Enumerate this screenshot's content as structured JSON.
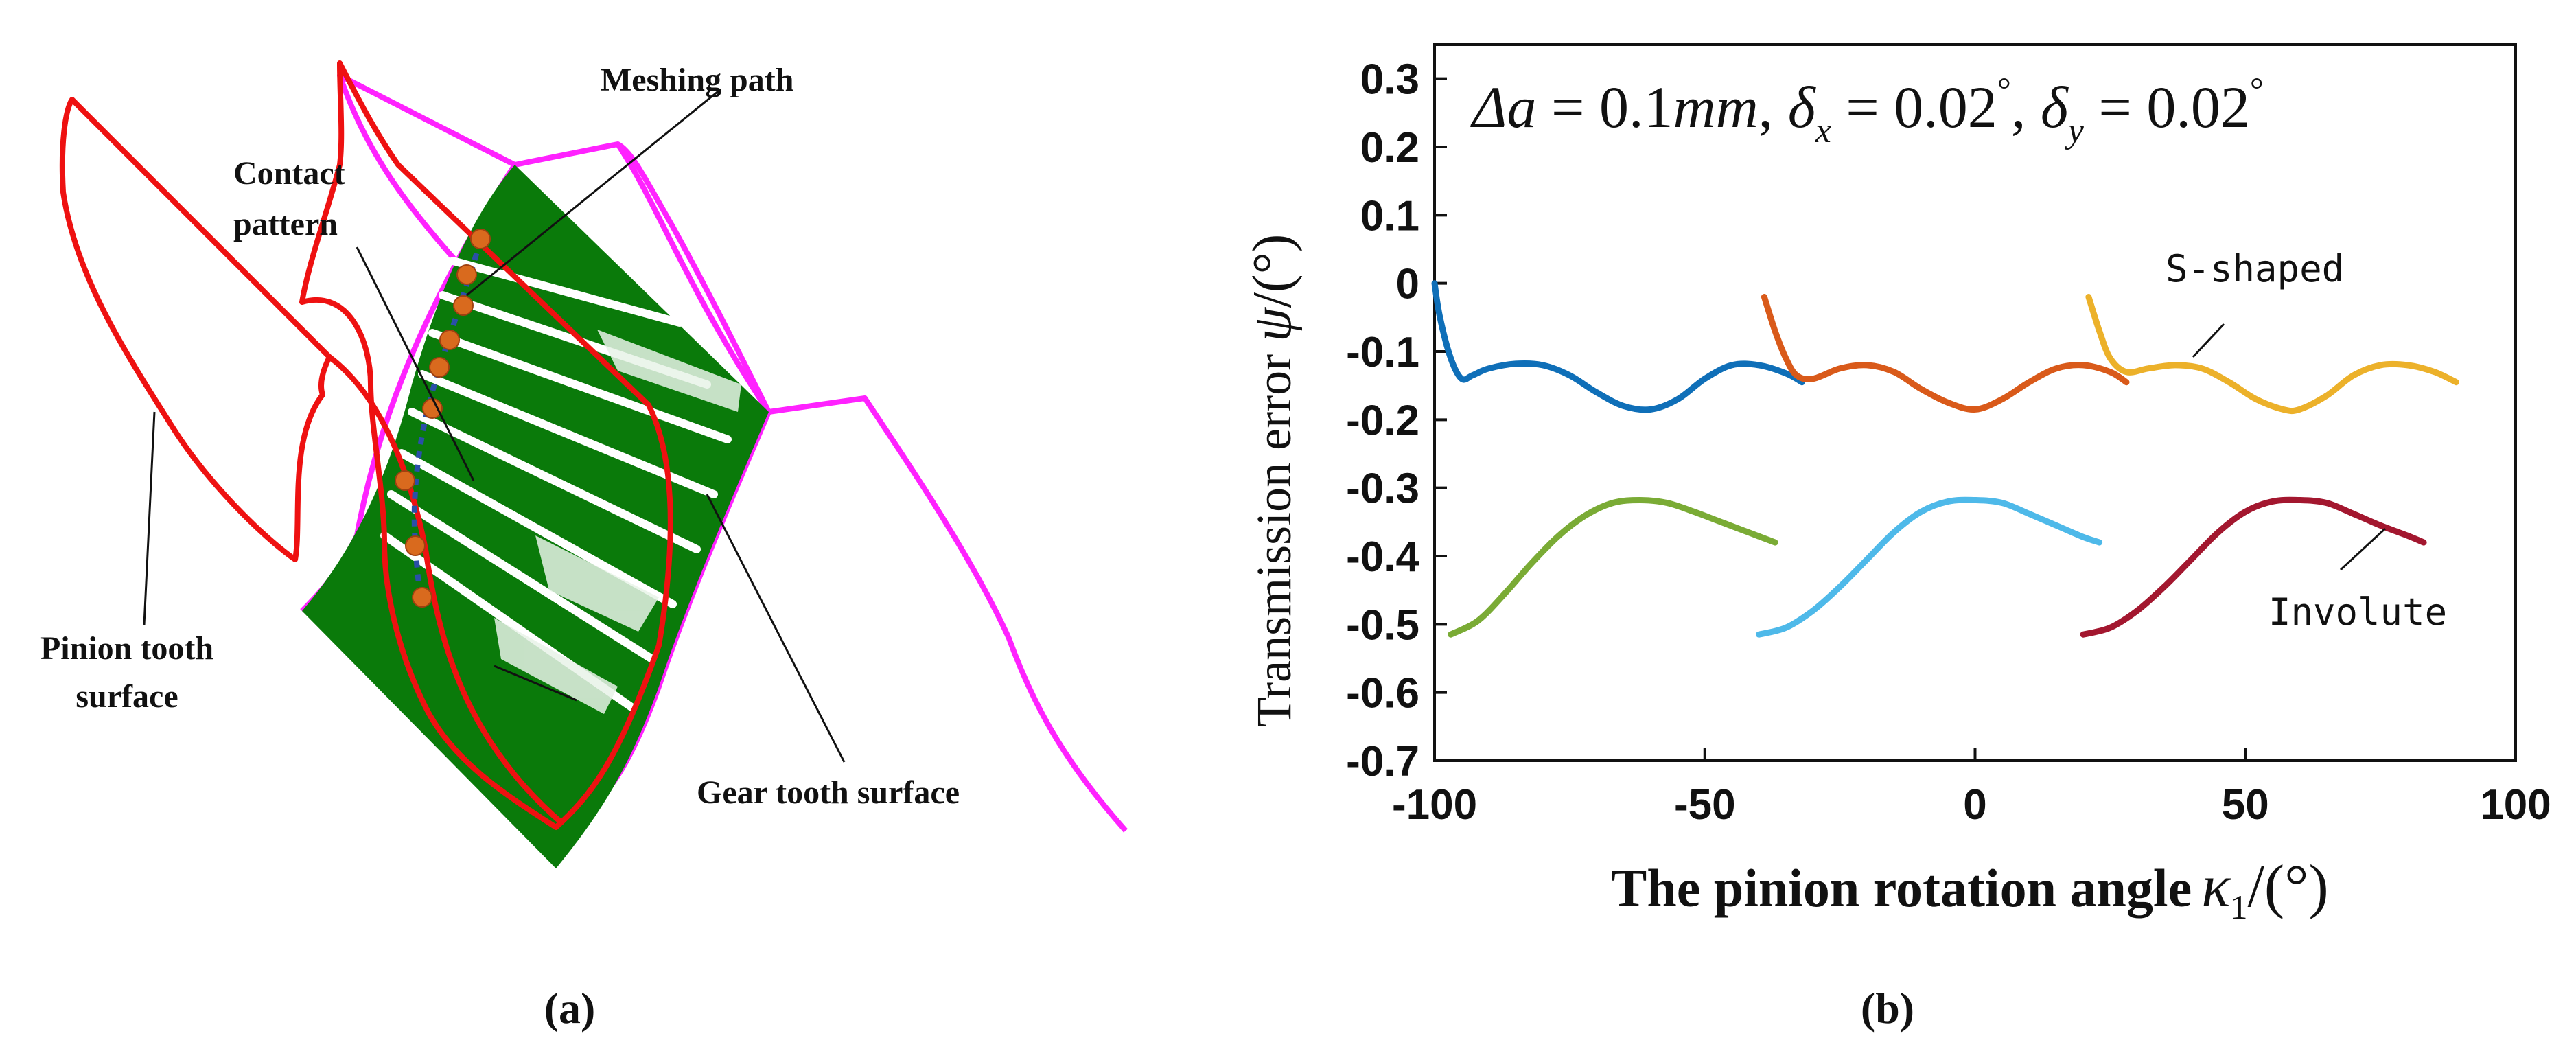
{
  "colors": {
    "pinion_outline": "#ee1111",
    "gear_outline": "#ff22ff",
    "contact_fill": "#0a7a0a",
    "meshing_star": "#d96a1e",
    "meshing_path": "#2a4fa8",
    "s_shaped_1": "#0f6fb8",
    "s_shaped_2": "#d95a1a",
    "s_shaped_3": "#ecb12a",
    "involute_1": "#7aab35",
    "involute_2": "#4eb9e9",
    "involute_3": "#a3172f"
  },
  "panel_a": {
    "caption": "(a)",
    "labels": {
      "meshing_path": "Meshing path",
      "contact_line1": "Contact",
      "contact_line2": "pattern",
      "pinion_line1": "Pinion tooth",
      "pinion_line2": "surface",
      "gear": "Gear tooth surface"
    }
  },
  "panel_b": {
    "caption": "(b)",
    "annotation": {
      "delta_a": "Δa",
      "eq1": " = 0.1",
      "unit": "mm",
      "sep": ", ",
      "delta": "δ",
      "sub_x": "x",
      "sub_y": "y",
      "eq2": " = 0.02",
      "deg": "°"
    },
    "label_s_shaped": "S-shaped",
    "label_involute": "Involute",
    "ylabel_text": "Transmission error ",
    "ylabel_symbol": "ψ",
    "ylabel_unit": "/(°)",
    "xlabel_text": "The pinion rotation angle",
    "xlabel_symbol": "κ",
    "xlabel_sub": "1",
    "xlabel_unit": "/(°)"
  },
  "chart_data": {
    "type": "line",
    "title": "Δa = 0.1mm, δx = 0.02°, δy = 0.02°",
    "xlabel": "The pinion rotation angle κ1 /(°)",
    "ylabel": "Transmission error ψ /(°)",
    "xlim": [
      -100,
      100
    ],
    "ylim": [
      -0.7,
      0.35
    ],
    "xticks": [
      -100,
      -50,
      0,
      50,
      100
    ],
    "xtick_labels": [
      "-100",
      "-50",
      "0",
      "50",
      "100"
    ],
    "yticks": [
      0.3,
      0.2,
      0.1,
      0,
      -0.1,
      -0.2,
      -0.3,
      -0.4,
      -0.5,
      -0.6,
      -0.7
    ],
    "ytick_labels": [
      "0.3",
      "0.2",
      "0.1",
      "0",
      "-0.1",
      "-0.2",
      "-0.3",
      "-0.4",
      "-0.5",
      "-0.6",
      "-0.7"
    ],
    "grid": false,
    "series": [
      {
        "name": "S-shaped (tooth 1)",
        "group": "S-shaped",
        "color": "#0f6fb8",
        "x": [
          -100,
          -99,
          -97,
          -95,
          -93,
          -90,
          -85,
          -80,
          -75,
          -70,
          -65,
          -60,
          -55,
          -50,
          -45,
          -40,
          -35,
          -32
        ],
        "y": [
          0.0,
          -0.05,
          -0.11,
          -0.14,
          -0.135,
          -0.125,
          -0.118,
          -0.12,
          -0.135,
          -0.16,
          -0.18,
          -0.185,
          -0.17,
          -0.14,
          -0.12,
          -0.12,
          -0.132,
          -0.145
        ]
      },
      {
        "name": "S-shaped (tooth 2)",
        "group": "S-shaped",
        "color": "#d95a1a",
        "x": [
          -39,
          -37,
          -35,
          -33,
          -30,
          -25,
          -20,
          -15,
          -10,
          -5,
          0,
          5,
          10,
          15,
          20,
          25,
          28
        ],
        "y": [
          -0.02,
          -0.07,
          -0.11,
          -0.135,
          -0.14,
          -0.125,
          -0.12,
          -0.13,
          -0.155,
          -0.175,
          -0.185,
          -0.17,
          -0.145,
          -0.125,
          -0.12,
          -0.13,
          -0.145
        ]
      },
      {
        "name": "S-shaped (tooth 3)",
        "group": "S-shaped",
        "color": "#ecb12a",
        "x": [
          21,
          23,
          25,
          28,
          32,
          37,
          42,
          47,
          52,
          57,
          60,
          65,
          70,
          75,
          80,
          85,
          89
        ],
        "y": [
          -0.02,
          -0.07,
          -0.11,
          -0.13,
          -0.125,
          -0.12,
          -0.125,
          -0.145,
          -0.17,
          -0.185,
          -0.185,
          -0.165,
          -0.135,
          -0.12,
          -0.12,
          -0.13,
          -0.145
        ]
      },
      {
        "name": "Involute (tooth 1)",
        "group": "Involute",
        "color": "#7aab35",
        "x": [
          -97,
          -92,
          -87,
          -82,
          -77,
          -72,
          -67,
          -62,
          -57,
          -52,
          -47,
          -42,
          -37
        ],
        "y": [
          -0.515,
          -0.495,
          -0.455,
          -0.41,
          -0.37,
          -0.34,
          -0.322,
          -0.318,
          -0.322,
          -0.335,
          -0.35,
          -0.365,
          -0.38
        ]
      },
      {
        "name": "Involute (tooth 2)",
        "group": "Involute",
        "color": "#4eb9e9",
        "x": [
          -40,
          -35,
          -30,
          -25,
          -20,
          -15,
          -10,
          -5,
          0,
          5,
          10,
          15,
          20,
          23
        ],
        "y": [
          -0.515,
          -0.505,
          -0.48,
          -0.445,
          -0.405,
          -0.365,
          -0.335,
          -0.32,
          -0.318,
          -0.322,
          -0.338,
          -0.355,
          -0.372,
          -0.38
        ]
      },
      {
        "name": "Involute (tooth 3)",
        "group": "Involute",
        "color": "#a3172f",
        "x": [
          20,
          25,
          30,
          35,
          40,
          45,
          50,
          55,
          60,
          65,
          70,
          75,
          80,
          83
        ],
        "y": [
          -0.515,
          -0.505,
          -0.48,
          -0.445,
          -0.405,
          -0.365,
          -0.335,
          -0.32,
          -0.318,
          -0.322,
          -0.338,
          -0.355,
          -0.37,
          -0.38
        ]
      }
    ]
  }
}
